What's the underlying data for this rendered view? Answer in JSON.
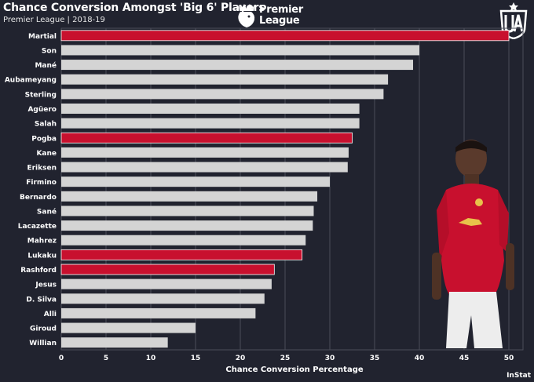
{
  "header": {
    "title": "Chance Conversion Amongst 'Big 6' Players",
    "subtitle": "Premier League  |  2018-19",
    "league_logo_line1": "Premier",
    "league_logo_line2": "League",
    "league_logo_icon": "lion-crown-icon",
    "brand_logo_icon": "ua-shield-icon"
  },
  "credit": "InStat",
  "chart_data": {
    "type": "bar",
    "orientation": "horizontal",
    "xlabel": "Chance Conversion Percentage",
    "ylabel": "",
    "xlim": [
      0,
      52
    ],
    "xticks": [
      0,
      5,
      10,
      15,
      20,
      25,
      30,
      35,
      40,
      45,
      50
    ],
    "grid": true,
    "categories": [
      "Martial",
      "Son",
      "Mané",
      "Aubameyang",
      "Sterling",
      "Agüero",
      "Salah",
      "Pogba",
      "Kane",
      "Eriksen",
      "Firmino",
      "Bernardo",
      "Sané",
      "Lacazette",
      "Mahrez",
      "Lukaku",
      "Rashford",
      "Jesus",
      "D. Silva",
      "Alli",
      "Giroud",
      "Willian"
    ],
    "values": [
      50.0,
      40.0,
      39.3,
      36.5,
      36.0,
      33.3,
      33.3,
      32.5,
      32.1,
      32.0,
      30.0,
      28.6,
      28.2,
      28.1,
      27.3,
      26.9,
      23.8,
      23.5,
      22.7,
      21.7,
      15.0,
      11.9
    ],
    "highlight": [
      "Martial",
      "Pogba",
      "Lukaku",
      "Rashford"
    ],
    "colors": {
      "default_bar": "#d4d4d4",
      "highlight_bar": "#c8102e",
      "background": "#21232f",
      "grid": "#4a4c58"
    }
  }
}
